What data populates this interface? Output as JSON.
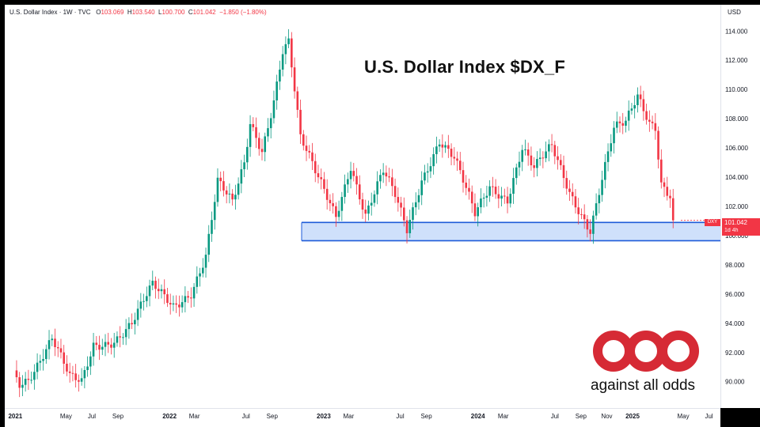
{
  "header": {
    "symbol_line": "U.S. Dollar Index · 1W · TVC",
    "o_label": "O",
    "o_value": "103.069",
    "h_label": "H",
    "h_value": "103.540",
    "l_label": "L",
    "l_value": "100.700",
    "c_label": "C",
    "c_value": "101.042",
    "change": "−1.850 (−1.80%)",
    "currency": "USD"
  },
  "overlay_title": "U.S. Dollar Index $DX_F",
  "logo": {
    "text": "against all odds",
    "color": "#d62a35"
  },
  "price_tag": {
    "symbol": "DXY",
    "price": "101.042",
    "countdown": "1d 4h"
  },
  "colors": {
    "up": "#089981",
    "down": "#f23645",
    "zone_fill": "#cfe0fb",
    "zone_line": "#1e5bd8"
  },
  "chart_data": {
    "type": "candlestick",
    "title": "U.S. Dollar Index $DX_F",
    "ylabel": "USD",
    "ylim": [
      88.2,
      115.8
    ],
    "y_ticks": [
      90,
      92,
      94,
      96,
      98,
      100,
      102,
      104,
      106,
      108,
      110,
      112,
      114
    ],
    "x_ticks": [
      {
        "label": "2021",
        "bold": true,
        "date": "2021-01-01"
      },
      {
        "label": "May",
        "bold": false,
        "date": "2021-05-01"
      },
      {
        "label": "Jul",
        "bold": false,
        "date": "2021-07-01"
      },
      {
        "label": "Sep",
        "bold": false,
        "date": "2021-09-01"
      },
      {
        "label": "2022",
        "bold": true,
        "date": "2022-01-01"
      },
      {
        "label": "Mar",
        "bold": false,
        "date": "2022-03-01"
      },
      {
        "label": "Jul",
        "bold": false,
        "date": "2022-07-01"
      },
      {
        "label": "Sep",
        "bold": false,
        "date": "2022-09-01"
      },
      {
        "label": "2023",
        "bold": true,
        "date": "2023-01-01"
      },
      {
        "label": "Mar",
        "bold": false,
        "date": "2023-03-01"
      },
      {
        "label": "Jul",
        "bold": false,
        "date": "2023-07-01"
      },
      {
        "label": "Sep",
        "bold": false,
        "date": "2023-09-01"
      },
      {
        "label": "2024",
        "bold": true,
        "date": "2024-01-01"
      },
      {
        "label": "Mar",
        "bold": false,
        "date": "2024-03-01"
      },
      {
        "label": "Jul",
        "bold": false,
        "date": "2024-07-01"
      },
      {
        "label": "Sep",
        "bold": false,
        "date": "2024-09-01"
      },
      {
        "label": "Nov",
        "bold": false,
        "date": "2024-11-01"
      },
      {
        "label": "2025",
        "bold": true,
        "date": "2025-01-01"
      },
      {
        "label": "May",
        "bold": false,
        "date": "2025-05-01"
      },
      {
        "label": "Jul",
        "bold": false,
        "date": "2025-07-01"
      }
    ],
    "support_zone": {
      "upper": 100.9,
      "lower": 99.65
    },
    "last_close": 101.042,
    "price_path": [
      {
        "date": "2020-12-28",
        "close": 90.6
      },
      {
        "date": "2021-01-11",
        "close": 90.0
      },
      {
        "date": "2021-02-01",
        "close": 90.4
      },
      {
        "date": "2021-03-29",
        "close": 93.0
      },
      {
        "date": "2021-05-10",
        "close": 90.1
      },
      {
        "date": "2021-06-07",
        "close": 89.8
      },
      {
        "date": "2021-07-05",
        "close": 92.5
      },
      {
        "date": "2021-08-23",
        "close": 93.0
      },
      {
        "date": "2021-10-04",
        "close": 94.0
      },
      {
        "date": "2021-11-22",
        "close": 96.4
      },
      {
        "date": "2022-01-10",
        "close": 95.2
      },
      {
        "date": "2022-02-21",
        "close": 96.3
      },
      {
        "date": "2022-03-28",
        "close": 98.7
      },
      {
        "date": "2022-04-25",
        "close": 103.6
      },
      {
        "date": "2022-05-30",
        "close": 102.0
      },
      {
        "date": "2022-06-27",
        "close": 104.8
      },
      {
        "date": "2022-07-11",
        "close": 107.7
      },
      {
        "date": "2022-08-08",
        "close": 106.0
      },
      {
        "date": "2022-09-05",
        "close": 109.5
      },
      {
        "date": "2022-09-26",
        "close": 112.8
      },
      {
        "date": "2022-10-10",
        "close": 113.3
      },
      {
        "date": "2022-11-07",
        "close": 106.5
      },
      {
        "date": "2022-12-12",
        "close": 104.2
      },
      {
        "date": "2023-01-30",
        "close": 101.5
      },
      {
        "date": "2023-03-06",
        "close": 105.0
      },
      {
        "date": "2023-04-10",
        "close": 101.4
      },
      {
        "date": "2023-05-22",
        "close": 104.2
      },
      {
        "date": "2023-06-19",
        "close": 102.6
      },
      {
        "date": "2023-07-17",
        "close": 100.4
      },
      {
        "date": "2023-08-21",
        "close": 104.0
      },
      {
        "date": "2023-10-02",
        "close": 106.6
      },
      {
        "date": "2023-11-06",
        "close": 105.2
      },
      {
        "date": "2023-12-25",
        "close": 101.3
      },
      {
        "date": "2024-01-29",
        "close": 103.4
      },
      {
        "date": "2024-03-11",
        "close": 102.7
      },
      {
        "date": "2024-04-15",
        "close": 106.1
      },
      {
        "date": "2024-05-13",
        "close": 104.5
      },
      {
        "date": "2024-06-24",
        "close": 105.9
      },
      {
        "date": "2024-08-05",
        "close": 103.0
      },
      {
        "date": "2024-09-23",
        "close": 100.6
      },
      {
        "date": "2024-10-21",
        "close": 104.0
      },
      {
        "date": "2024-11-18",
        "close": 107.2
      },
      {
        "date": "2024-12-16",
        "close": 107.5
      },
      {
        "date": "2025-01-13",
        "close": 109.4
      },
      {
        "date": "2025-02-10",
        "close": 107.8
      },
      {
        "date": "2025-02-24",
        "close": 107.6
      },
      {
        "date": "2025-03-10",
        "close": 103.8
      },
      {
        "date": "2025-03-31",
        "close": 103.0
      },
      {
        "date": "2025-04-07",
        "close": 101.04
      }
    ]
  }
}
